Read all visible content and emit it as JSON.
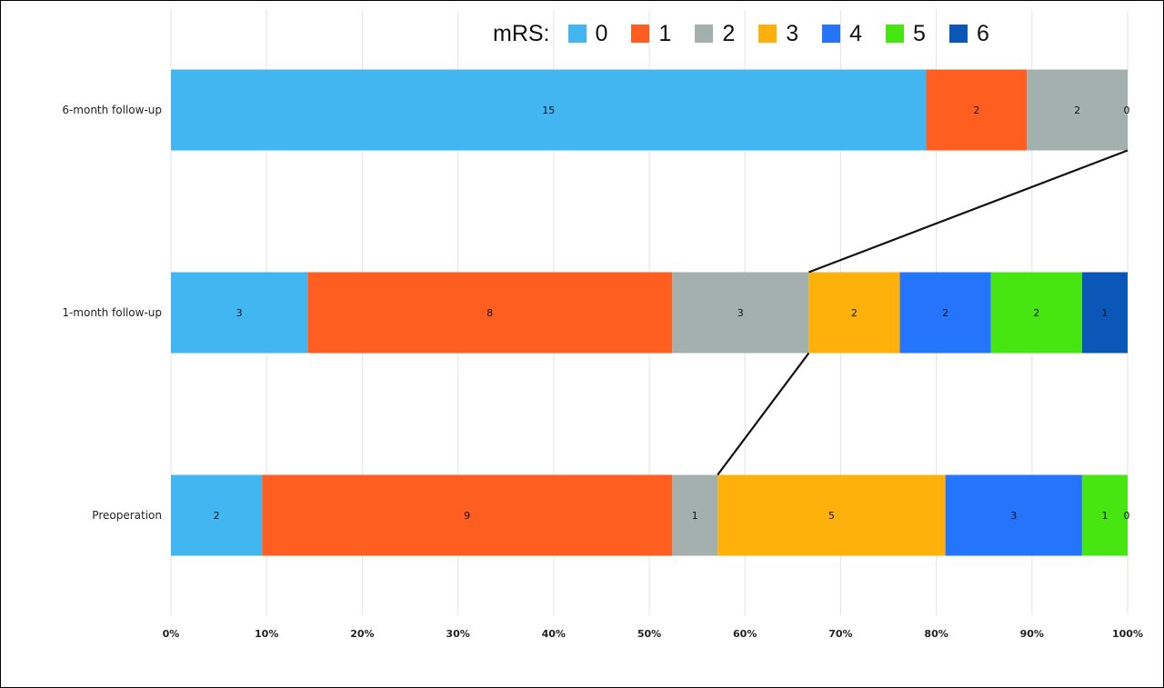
{
  "chart_data": {
    "type": "bar",
    "orientation": "horizontal",
    "stacked": true,
    "normalized": true,
    "title": "",
    "xlabel": "",
    "ylabel": "",
    "xlim": [
      0,
      100
    ],
    "x_ticks": [
      "0%",
      "10%",
      "20%",
      "30%",
      "40%",
      "50%",
      "60%",
      "70%",
      "80%",
      "90%",
      "100%"
    ],
    "grid": "vertical",
    "legend": {
      "title": "mRS:",
      "position": "top",
      "entries": [
        "0",
        "1",
        "2",
        "3",
        "4",
        "5",
        "6"
      ]
    },
    "categories": [
      "6-month follow-up",
      "1-month follow-up",
      "Preoperation"
    ],
    "series": [
      {
        "name": "0",
        "color": "#41b6f0",
        "values": [
          15,
          3,
          2
        ]
      },
      {
        "name": "1",
        "color": "#fe5f21",
        "values": [
          2,
          8,
          9
        ]
      },
      {
        "name": "2",
        "color": "#a4b0ae",
        "values": [
          2,
          3,
          1
        ]
      },
      {
        "name": "3",
        "color": "#feb10a",
        "values": [
          0,
          2,
          5
        ]
      },
      {
        "name": "4",
        "color": "#2574fc",
        "values": [
          0,
          2,
          3
        ]
      },
      {
        "name": "5",
        "color": "#47e612",
        "values": [
          0,
          2,
          1
        ]
      },
      {
        "name": "6",
        "color": "#0b57b7",
        "values": [
          0,
          1,
          0
        ]
      }
    ],
    "shown_labels": [
      [
        "15",
        "2",
        "2",
        "0",
        null,
        null,
        null
      ],
      [
        "3",
        "8",
        "3",
        "2",
        "2",
        "2",
        "1"
      ],
      [
        "2",
        "9",
        "1",
        "5",
        "3",
        "1",
        "0"
      ]
    ],
    "connector_lines": [
      {
        "from": {
          "category": "6-month follow-up",
          "percent": 100
        },
        "to": {
          "category": "1-month follow-up",
          "percent": 66.67
        }
      },
      {
        "from": {
          "category": "1-month follow-up",
          "percent": 66.67
        },
        "to": {
          "category": "Preoperation",
          "percent": 57.14
        }
      }
    ]
  }
}
